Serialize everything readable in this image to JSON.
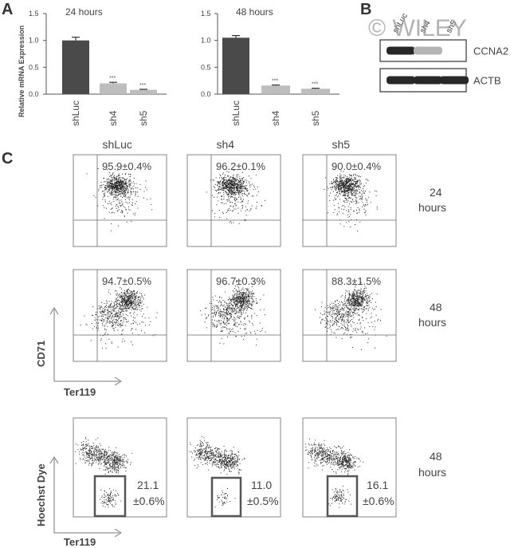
{
  "panel_labels": {
    "a": "A",
    "b": "B",
    "c": "C"
  },
  "watermark": "© WILEY",
  "chart_data": [
    {
      "type": "bar",
      "title": "24 hours",
      "ylabel": "Relative mRNA Expression",
      "categories": [
        "shLuc",
        "sh4",
        "sh5"
      ],
      "values": [
        1.0,
        0.2,
        0.08
      ],
      "errors": [
        0.06,
        0.02,
        0.01
      ],
      "significance": [
        "",
        "***",
        "***"
      ],
      "ylim": [
        0,
        1.5
      ],
      "yticks": [
        "0.0",
        "0.5",
        "1.0",
        "1.5"
      ],
      "colors": [
        "#4a4a4a",
        "#bdbdbd",
        "#bdbdbd"
      ]
    },
    {
      "type": "bar",
      "title": "48 hours",
      "categories": [
        "shLuc",
        "sh4",
        "sh5"
      ],
      "values": [
        1.05,
        0.16,
        0.1
      ],
      "errors": [
        0.04,
        0.01,
        0.01
      ],
      "significance": [
        "",
        "***",
        "***"
      ],
      "ylim": [
        0,
        1.5
      ],
      "yticks": [
        "0.0",
        "0.5",
        "1.0",
        "1.5"
      ],
      "colors": [
        "#4a4a4a",
        "#bdbdbd",
        "#bdbdbd"
      ]
    }
  ],
  "blot": {
    "lanes": [
      "shLuc",
      "sh4",
      "sh5"
    ],
    "bands": [
      {
        "name": "CCNA2",
        "intensity": [
          1.0,
          0.35,
          0.0
        ]
      },
      {
        "name": "ACTB",
        "intensity": [
          1.0,
          1.0,
          1.0
        ]
      }
    ]
  },
  "flow": {
    "columns": [
      "shLuc",
      "sh4",
      "sh5"
    ],
    "rows": [
      {
        "label_line1": "24",
        "label_line2": "hours",
        "values": [
          "95.9±0.4%",
          "96.2±0.1%",
          "90.0±0.4%"
        ]
      },
      {
        "label_line1": "48",
        "label_line2": "hours",
        "values": [
          "94.7±0.5%",
          "96.7±0.3%",
          "88.3±1.5%"
        ]
      }
    ],
    "y_axis": "CD71",
    "x_axis": "Ter119"
  },
  "hoechst": {
    "label_line1": "48",
    "label_line2": "hours",
    "values": [
      {
        "line1": "21.1",
        "line2": "±0.6%"
      },
      {
        "line1": "11.0",
        "line2": "±0.5%"
      },
      {
        "line1": "16.1",
        "line2": "±0.6%"
      }
    ],
    "y_axis": "Hoechst Dye",
    "x_axis": "Ter119"
  }
}
